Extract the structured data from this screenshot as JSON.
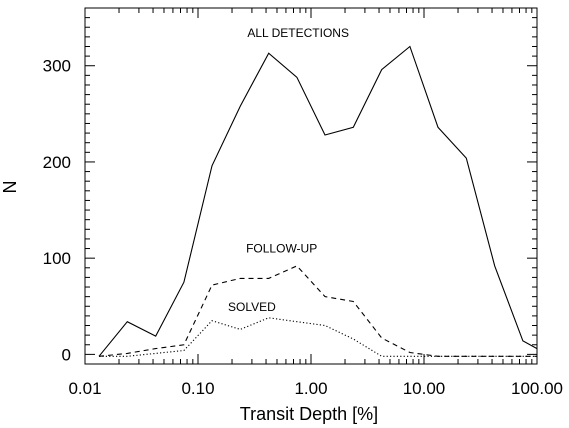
{
  "chart_data": {
    "type": "line",
    "xscale": "log",
    "xlim": [
      0.01,
      100.0
    ],
    "ylim": [
      -10,
      360
    ],
    "xlabel": "Transit Depth [%]",
    "ylabel": "N",
    "x_ticks": [
      {
        "value": 0.01,
        "label": "0.01"
      },
      {
        "value": 0.1,
        "label": "0.10"
      },
      {
        "value": 1.0,
        "label": "1.00"
      },
      {
        "value": 10.0,
        "label": "10.00"
      },
      {
        "value": 100.0,
        "label": "100.00"
      }
    ],
    "y_ticks": [
      {
        "value": 0,
        "label": "0"
      },
      {
        "value": 100,
        "label": "100"
      },
      {
        "value": 200,
        "label": "200"
      },
      {
        "value": 300,
        "label": "300"
      }
    ],
    "x": [
      0.0133,
      0.0237,
      0.0422,
      0.075,
      0.133,
      0.237,
      0.422,
      0.75,
      1.33,
      2.37,
      4.22,
      7.5,
      13.3,
      23.7,
      42.2,
      75.0,
      100.0
    ],
    "series": [
      {
        "name": "ALL DETECTIONS",
        "style": "solid",
        "values": [
          -2,
          34,
          19,
          75,
          196,
          258,
          313,
          288,
          228,
          236,
          296,
          320,
          236,
          204,
          92,
          14,
          6
        ]
      },
      {
        "name": "FOLLOW-UP",
        "style": "dashed",
        "values": [
          -2,
          1,
          6,
          10,
          72,
          79,
          79,
          92,
          60,
          55,
          17,
          2,
          -2,
          -2,
          -2,
          -2,
          -2
        ]
      },
      {
        "name": "SOLVED",
        "style": "dotted",
        "values": [
          -2,
          -2,
          1,
          4,
          35,
          26,
          38,
          34,
          30,
          16,
          -2,
          -2,
          -2,
          -2,
          -2,
          -2,
          -2
        ]
      }
    ],
    "annotations": [
      {
        "text": "ALL DETECTIONS",
        "x": 0.77,
        "y": 330
      },
      {
        "text": "FOLLOW-UP",
        "x": 0.55,
        "y": 106
      },
      {
        "text": "SOLVED",
        "x": 0.3,
        "y": 45
      }
    ]
  }
}
